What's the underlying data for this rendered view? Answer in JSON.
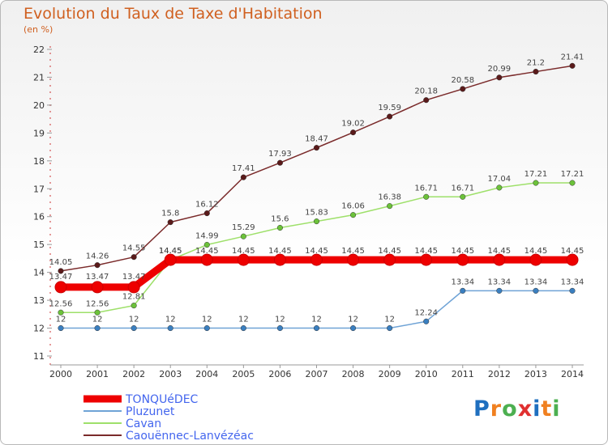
{
  "title": "Evolution du Taux de Taxe d'Habitation",
  "unit": "(en %)",
  "logo": {
    "letters": [
      "P",
      "r",
      "o",
      "x",
      "i",
      "t",
      "i"
    ],
    "colors": [
      "#1f6fbf",
      "#f08020",
      "#4caf50",
      "#e03030",
      "#1f6fbf",
      "#f08020",
      "#4caf50"
    ]
  },
  "chart_data": {
    "type": "line",
    "x": [
      "2000",
      "2001",
      "2002",
      "2003",
      "2004",
      "2005",
      "2006",
      "2007",
      "2008",
      "2009",
      "2010",
      "2011",
      "2012",
      "2013",
      "2014"
    ],
    "y_ticks": [
      "11",
      "12",
      "13",
      "14",
      "15",
      "16",
      "17",
      "18",
      "19",
      "20",
      "21",
      "22"
    ],
    "ylim": [
      11,
      22
    ],
    "grid": false,
    "legend_position": "bottom-left",
    "series": [
      {
        "name": "TONQUéDEC",
        "color": "#ee0000",
        "marker": "#ee0000",
        "thick": true,
        "values": [
          13.47,
          13.47,
          13.47,
          14.45,
          14.45,
          14.45,
          14.45,
          14.45,
          14.45,
          14.45,
          14.45,
          14.45,
          14.45,
          14.45,
          14.45
        ],
        "labels": [
          "13.47",
          "13.47",
          "13.47",
          "14.45",
          "14.45",
          "14.45",
          "14.45",
          "14.45",
          "14.45",
          "14.45",
          "14.45",
          "14.45",
          "14.45",
          "14.45",
          "14.45"
        ]
      },
      {
        "name": "Pluzunet",
        "color": "#6fa3d6",
        "marker": "#3a7fc0",
        "values": [
          12,
          12,
          12,
          12,
          12,
          12,
          12,
          12,
          12,
          12,
          12.24,
          13.34,
          13.34,
          13.34,
          13.34
        ],
        "labels": [
          "12",
          "12",
          "12",
          "12",
          "12",
          "12",
          "12",
          "12",
          "12",
          "12",
          "12.24",
          "13.34",
          "13.34",
          "13.34",
          "13.34"
        ]
      },
      {
        "name": "Cavan",
        "color": "#9ee06a",
        "marker": "#6cc23a",
        "values": [
          12.56,
          12.56,
          12.81,
          14.45,
          14.99,
          15.29,
          15.6,
          15.83,
          16.06,
          16.38,
          16.71,
          16.71,
          17.04,
          17.21,
          17.21
        ],
        "labels": [
          "12.56",
          "12.56",
          "12.81",
          "14.45",
          "14.99",
          "15.29",
          "15.6",
          "15.83",
          "16.06",
          "16.38",
          "16.71",
          "16.71",
          "17.04",
          "17.21",
          "17.21"
        ]
      },
      {
        "name": "Caouënnec-Lanvézéac",
        "color": "#7a2a2a",
        "marker": "#5a1a1a",
        "values": [
          14.05,
          14.26,
          14.55,
          15.8,
          16.12,
          17.41,
          17.93,
          18.47,
          19.02,
          19.59,
          20.18,
          20.58,
          20.99,
          21.2,
          21.41
        ],
        "labels": [
          "14.05",
          "14.26",
          "14.55",
          "15.8",
          "16.12",
          "17.41",
          "17.93",
          "18.47",
          "19.02",
          "19.59",
          "20.18",
          "20.58",
          "20.99",
          "21.2",
          "21.41"
        ]
      }
    ]
  }
}
